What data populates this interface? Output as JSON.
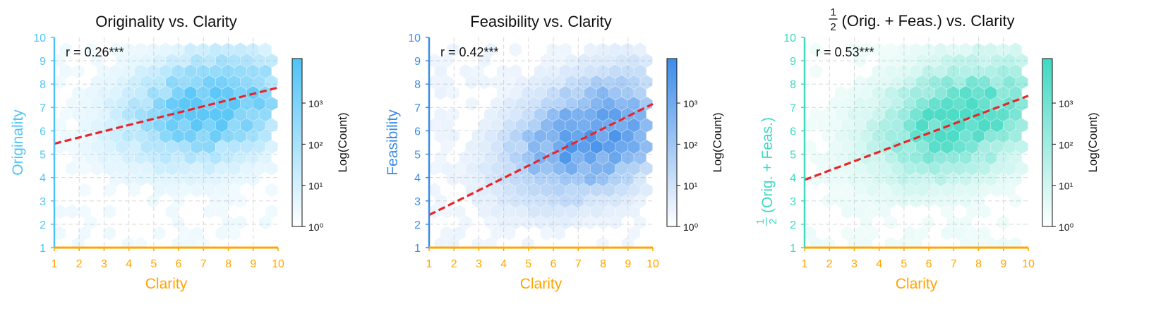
{
  "chart_data": [
    {
      "type": "hexbin",
      "title": "Originality vs. Clarity",
      "xlabel": "Clarity",
      "ylabel": "Originality",
      "xlim": [
        1,
        10
      ],
      "ylim": [
        1,
        10
      ],
      "xticks": [
        "1",
        "2",
        "3",
        "4",
        "5",
        "6",
        "7",
        "8",
        "9",
        "10"
      ],
      "yticks": [
        "1",
        "2",
        "3",
        "4",
        "5",
        "6",
        "7",
        "8",
        "9",
        "10"
      ],
      "annotation": "r = 0.26***",
      "regression_line": {
        "x": [
          1,
          10
        ],
        "y": [
          5.45,
          7.85
        ]
      },
      "density_center": {
        "x": 7.3,
        "y": 7.0
      },
      "colorbar": {
        "label": "Log(Count)",
        "scale": "log",
        "ticks": [
          "10⁰",
          "10¹",
          "10²",
          "10³"
        ]
      },
      "colors": {
        "fill": "#4fc3f7",
        "ylabel": "#4fc3f7",
        "xaxis": "#ffa500",
        "regression": "#e8262a"
      }
    },
    {
      "type": "hexbin",
      "title": "Feasibility vs. Clarity",
      "xlabel": "Clarity",
      "ylabel": "Feasibility",
      "xlim": [
        1,
        10
      ],
      "ylim": [
        1,
        10
      ],
      "xticks": [
        "1",
        "2",
        "3",
        "4",
        "5",
        "6",
        "7",
        "8",
        "9",
        "10"
      ],
      "yticks": [
        "1",
        "2",
        "3",
        "4",
        "5",
        "6",
        "7",
        "8",
        "9",
        "10"
      ],
      "annotation": "r = 0.42***",
      "regression_line": {
        "x": [
          1,
          10
        ],
        "y": [
          2.4,
          7.15
        ]
      },
      "density_center": {
        "x": 7.6,
        "y": 5.8
      },
      "colorbar": {
        "label": "Log(Count)",
        "scale": "log",
        "ticks": [
          "10⁰",
          "10¹",
          "10²",
          "10³"
        ]
      },
      "colors": {
        "fill": "#3d8ce8",
        "ylabel": "#3d8ce8",
        "xaxis": "#ffa500",
        "regression": "#e8262a"
      }
    },
    {
      "type": "hexbin",
      "title_prefix": "(Orig. + Feas.) vs. Clarity",
      "fraction": {
        "num": "1",
        "den": "2"
      },
      "xlabel": "Clarity",
      "ylabel": "(Orig. + Feas.)",
      "xlim": [
        1,
        10
      ],
      "ylim": [
        1,
        10
      ],
      "xticks": [
        "1",
        "2",
        "3",
        "4",
        "5",
        "6",
        "7",
        "8",
        "9",
        "10"
      ],
      "yticks": [
        "1",
        "2",
        "3",
        "4",
        "5",
        "6",
        "7",
        "8",
        "9",
        "10"
      ],
      "annotation": "r = 0.53***",
      "regression_line": {
        "x": [
          1,
          10
        ],
        "y": [
          3.9,
          7.5
        ]
      },
      "density_center": {
        "x": 7.3,
        "y": 6.5
      },
      "colorbar": {
        "label": "Log(Count)",
        "scale": "log",
        "ticks": [
          "10⁰",
          "10¹",
          "10²",
          "10³"
        ]
      },
      "colors": {
        "fill": "#3fd9c2",
        "ylabel": "#3fd9c2",
        "xaxis": "#ffa500",
        "regression": "#e8262a"
      }
    }
  ]
}
